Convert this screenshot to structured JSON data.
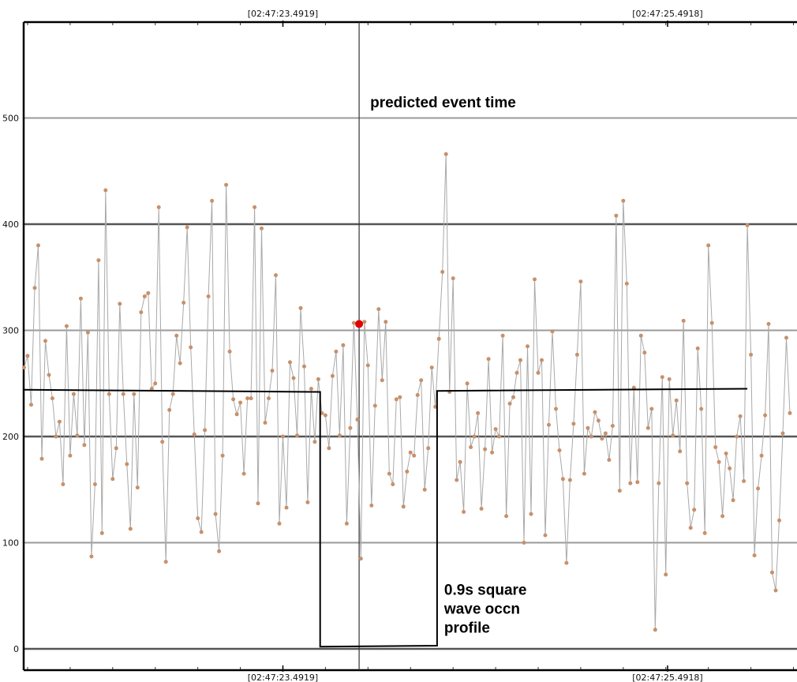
{
  "chart_data": {
    "type": "scatter",
    "title": "",
    "xlabel": "",
    "ylabel": "",
    "ylim": [
      -20,
      590
    ],
    "xlim": [
      0,
      218
    ],
    "grid": true,
    "y_ticks": [
      0,
      100,
      200,
      300,
      400,
      500
    ],
    "x_tick_labels": [
      {
        "label": "[02:47:23.4919]",
        "x": 73
      },
      {
        "label": "[02:47:25.4918]",
        "x": 181.5
      }
    ],
    "event_marker": {
      "label": "predicted event time",
      "x": 94.5,
      "y": 306,
      "color": "#e00000"
    },
    "square_wave": {
      "label_lines": [
        "0.9s square",
        "wave occn",
        "profile"
      ],
      "points": [
        [
          0,
          244
        ],
        [
          83.5,
          242
        ],
        [
          83.5,
          2
        ],
        [
          116.5,
          3
        ],
        [
          116.5,
          243
        ],
        [
          204,
          245
        ]
      ]
    },
    "series": [
      {
        "color": "#c8906a",
        "values": [
          265,
          276,
          230,
          340,
          380,
          179,
          290,
          258,
          236,
          200,
          214,
          155,
          304,
          182,
          240,
          201,
          330,
          192,
          298,
          87,
          155,
          366,
          109,
          432,
          240,
          160,
          189,
          325,
          240,
          174,
          113,
          240,
          152,
          317,
          332,
          335,
          245,
          250,
          416,
          195,
          82,
          225,
          240,
          295,
          269,
          326,
          397,
          284,
          202,
          123,
          110,
          206,
          332,
          422,
          127,
          92,
          182,
          437,
          280,
          235,
          221,
          232,
          165,
          236,
          236,
          416,
          137,
          396,
          213,
          236,
          262,
          352,
          118,
          200,
          133,
          270,
          255,
          201,
          321,
          266,
          138,
          245,
          195,
          254,
          222,
          220,
          189,
          257,
          280,
          201,
          286,
          118,
          208,
          307,
          216,
          85,
          308,
          267,
          135,
          229,
          320,
          253,
          308,
          165,
          155,
          235,
          237,
          134,
          167,
          185,
          182,
          239,
          253,
          150,
          189,
          265,
          228,
          292,
          355,
          466,
          242,
          349,
          159,
          176,
          129,
          250,
          190,
          200,
          222,
          132,
          188,
          273,
          185,
          207,
          200,
          295,
          125,
          231,
          237,
          260,
          272,
          100,
          285,
          127,
          348,
          260,
          272,
          107,
          211,
          299,
          226,
          187,
          160,
          81,
          159,
          212,
          277,
          346,
          165,
          208,
          200,
          223,
          215,
          198,
          203,
          178,
          210,
          408,
          149,
          422,
          344,
          156,
          246,
          157,
          295,
          279,
          208,
          226,
          18,
          156,
          256,
          70,
          254,
          201,
          234,
          186,
          309,
          156,
          114,
          131,
          283,
          226,
          109,
          380,
          307,
          190,
          176,
          125,
          184,
          170,
          140,
          200,
          219,
          158,
          399,
          277,
          88,
          151,
          182,
          220,
          306,
          72,
          55,
          121,
          203,
          293,
          222
        ]
      }
    ]
  }
}
